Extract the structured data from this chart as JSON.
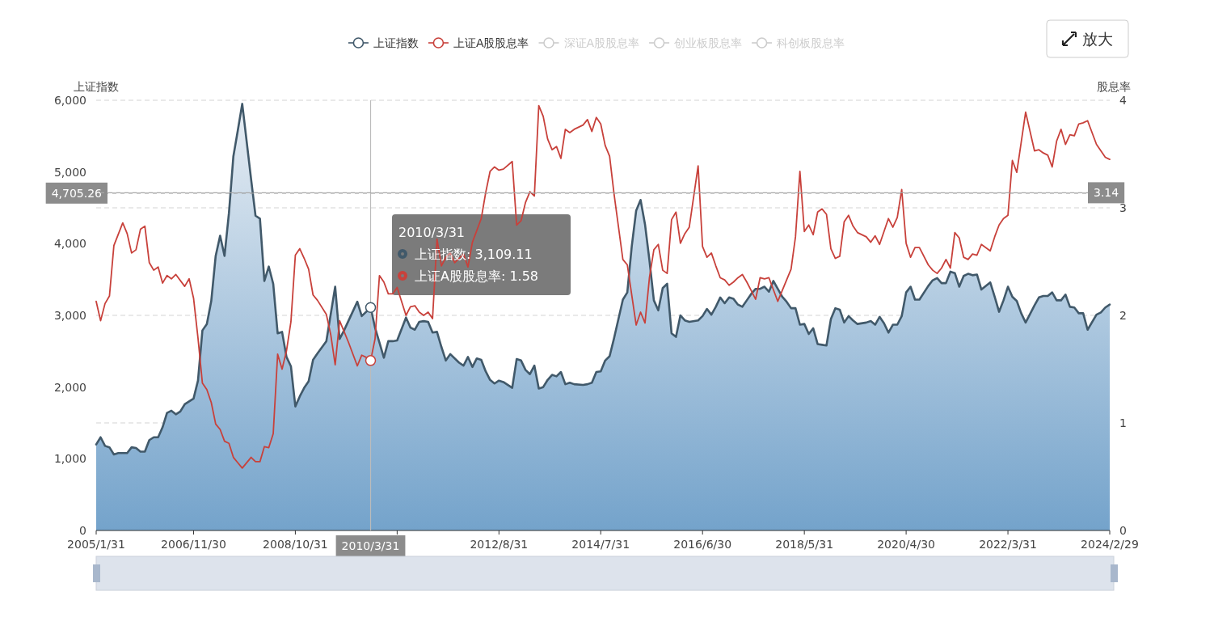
{
  "chart_data": {
    "type": "area",
    "ylabel": "上证指数",
    "y2label": "股息率",
    "legend": "top",
    "grid": "y2",
    "xlim": [
      "2005-01",
      "2024-02"
    ],
    "xticks": [
      {
        "value": "2005-01",
        "label": "2005/1/31"
      },
      {
        "value": "2006-11",
        "label": "2006/11/30"
      },
      {
        "value": "2008-10",
        "label": "2008/10/31"
      },
      {
        "value": "2010-09",
        "label": null
      },
      {
        "value": "2012-08",
        "label": "2012/8/31"
      },
      {
        "value": "2014-07",
        "label": "2014/7/31"
      },
      {
        "value": "2016-06",
        "label": "2016/6/30"
      },
      {
        "value": "2018-05",
        "label": "2018/5/31"
      },
      {
        "value": "2020-04",
        "label": "2020/4/30"
      },
      {
        "value": "2022-03",
        "label": "2022/3/31"
      },
      {
        "value": "2024-02",
        "label": "2024/2/29"
      }
    ],
    "ylim": [
      0,
      6000
    ],
    "yticks": [
      0,
      {
        "value": 1000,
        "label": "1,000"
      },
      {
        "value": 2000,
        "label": "2,000"
      },
      {
        "value": 3000,
        "label": "3,000"
      },
      {
        "value": 4000,
        "label": "4,000"
      },
      {
        "value": 5000,
        "label": "5,000"
      },
      {
        "value": 6000,
        "label": "6,000"
      }
    ],
    "y2lim": [
      0,
      4
    ],
    "y2ticks": [
      0,
      1,
      2,
      3,
      4
    ],
    "ref_lines": [
      {
        "axis": "x",
        "value": "2010-03",
        "label": "2010/3/31",
        "color": "#bbbbbb"
      },
      {
        "axis": "y",
        "value": 4705.26,
        "label": "4,705.26",
        "color": "#999999",
        "line_style": "dashed"
      },
      {
        "axis": "y2",
        "value": 3.14,
        "label": "3.14",
        "color": "#a8a8a8",
        "line_style": "dashed"
      }
    ],
    "annotations": [
      "2010/3/31",
      "上证指数: 3,109.11",
      "上证A股股息率: 1.58",
      "放大"
    ],
    "series": [
      {
        "name": "上证指数",
        "color": "#41596a",
        "x": [
          "2005-01",
          "2005-02",
          "2005-03",
          "2005-04",
          "2005-05",
          "2005-06",
          "2005-08",
          "2005-09",
          "2005-10",
          "2005-11",
          "2005-12",
          "2006-01",
          "2006-02",
          "2006-03",
          "2006-04",
          "2006-05",
          "2006-06",
          "2006-07",
          "2006-08",
          "2006-09",
          "2006-11",
          "2006-12",
          "2007-01",
          "2007-02",
          "2007-03",
          "2007-04",
          "2007-05",
          "2007-06",
          "2007-07",
          "2007-08",
          "2007-09",
          "2007-10",
          "2007-12",
          "2008-01",
          "2008-02",
          "2008-03",
          "2008-04",
          "2008-05",
          "2008-06",
          "2008-07",
          "2008-08",
          "2008-09",
          "2008-10",
          "2008-11",
          "2008-12",
          "2009-01",
          "2009-02",
          "2009-03",
          "2009-05",
          "2009-07",
          "2009-08",
          "2009-09",
          "2009-12",
          "2010-01",
          "2010-02",
          "2010-03",
          "2010-04",
          "2010-05",
          "2010-06",
          "2010-07",
          "2010-08",
          "2010-09",
          "2010-11",
          "2010-12",
          "2011-01",
          "2011-02",
          "2011-03",
          "2011-04",
          "2011-05",
          "2011-06",
          "2011-07",
          "2011-08",
          "2011-09",
          "2011-11",
          "2011-12",
          "2012-01",
          "2012-02",
          "2012-03",
          "2012-04",
          "2012-05",
          "2012-06",
          "2012-07",
          "2012-08",
          "2012-09",
          "2012-11",
          "2012-12",
          "2013-01",
          "2013-02",
          "2013-03",
          "2013-04",
          "2013-05",
          "2013-06",
          "2013-07",
          "2013-08",
          "2013-09",
          "2013-10",
          "2013-11",
          "2013-12",
          "2014-01",
          "2014-03",
          "2014-04",
          "2014-05",
          "2014-06",
          "2014-07",
          "2014-08",
          "2014-09",
          "2014-10",
          "2014-12",
          "2015-01",
          "2015-02",
          "2015-03",
          "2015-04",
          "2015-05",
          "2015-06",
          "2015-07",
          "2015-08",
          "2015-09",
          "2015-10",
          "2015-11",
          "2015-12",
          "2016-01",
          "2016-02",
          "2016-03",
          "2016-05",
          "2016-06",
          "2016-07",
          "2016-08",
          "2016-09",
          "2016-10",
          "2016-11",
          "2016-12",
          "2017-01",
          "2017-02",
          "2017-03",
          "2017-04",
          "2017-05",
          "2017-06",
          "2017-07",
          "2017-08",
          "2017-09",
          "2017-10",
          "2017-12",
          "2018-01",
          "2018-02",
          "2018-03",
          "2018-04",
          "2018-05",
          "2018-06",
          "2018-07",
          "2018-08",
          "2018-09",
          "2018-10",
          "2018-11",
          "2018-12",
          "2019-01",
          "2019-02",
          "2019-03",
          "2019-04",
          "2019-05",
          "2019-07",
          "2019-08",
          "2019-09",
          "2019-10",
          "2019-11",
          "2019-12",
          "2020-01",
          "2020-02",
          "2020-03",
          "2020-04",
          "2020-05",
          "2020-06",
          "2020-07",
          "2020-09",
          "2020-10",
          "2020-11",
          "2020-12",
          "2021-01",
          "2021-02",
          "2021-03",
          "2021-04",
          "2021-05",
          "2021-06",
          "2021-07",
          "2021-08",
          "2021-09",
          "2021-11",
          "2021-12",
          "2022-01",
          "2022-02",
          "2022-03",
          "2022-04",
          "2022-05",
          "2022-06",
          "2022-07",
          "2022-09",
          "2022-10",
          "2022-11",
          "2022-12",
          "2023-01",
          "2023-02",
          "2023-03",
          "2023-04",
          "2023-05",
          "2023-06",
          "2023-07",
          "2023-08",
          "2023-09",
          "2023-11",
          "2023-12",
          "2024-01",
          "2024-02"
        ],
        "values": [
          1200,
          1300,
          1180,
          1160,
          1060,
          1080,
          1080,
          1160,
          1150,
          1100,
          1100,
          1260,
          1300,
          1300,
          1440,
          1640,
          1670,
          1620,
          1660,
          1760,
          1840,
          2090,
          2790,
          2880,
          3200,
          3830,
          4110,
          3830,
          4430,
          5220,
          5580,
          5950,
          4900,
          4390,
          4350,
          3480,
          3680,
          3440,
          2750,
          2770,
          2420,
          2290,
          1730,
          1870,
          1990,
          2080,
          2380,
          2470,
          2640,
          3400,
          2670,
          2790,
          3190,
          2990,
          3050,
          3109.11,
          2830,
          2620,
          2410,
          2640,
          2640,
          2650,
          2970,
          2830,
          2800,
          2910,
          2920,
          2910,
          2760,
          2770,
          2560,
          2370,
          2460,
          2340,
          2300,
          2420,
          2280,
          2400,
          2380,
          2220,
          2100,
          2050,
          2090,
          2070,
          1990,
          2390,
          2370,
          2240,
          2180,
          2300,
          1980,
          2000,
          2100,
          2170,
          2150,
          2210,
          2040,
          2060,
          2040,
          2030,
          2040,
          2060,
          2210,
          2220,
          2370,
          2430,
          2680,
          3220,
          3320,
          3960,
          4460,
          4610,
          4270,
          3770,
          3210,
          3070,
          3380,
          3440,
          2750,
          2700,
          3000,
          2930,
          2910,
          2930,
          2990,
          3090,
          3010,
          3120,
          3250,
          3170,
          3250,
          3230,
          3150,
          3120,
          3210,
          3300,
          3370,
          3370,
          3400,
          3330,
          3480,
          3260,
          3190,
          3100,
          3100,
          2870,
          2880,
          2740,
          2820,
          2600,
          2590,
          2580,
          2950,
          3100,
          3080,
          2900,
          2990,
          2930,
          2880,
          2900,
          2920,
          2870,
          2980,
          2890,
          2760,
          2870,
          2870,
          2990,
          3320,
          3400,
          3220,
          3220,
          3410,
          3490,
          3520,
          3450,
          3450,
          3610,
          3590,
          3400,
          3550,
          3580,
          3560,
          3570,
          3360,
          3460,
          3260,
          3050,
          3210,
          3400,
          3260,
          3200,
          3030,
          2900,
          3140,
          3250,
          3270,
          3270,
          3320,
          3210,
          3210,
          3290,
          3120,
          3110,
          3030,
          3030,
          2800,
          3010,
          3040,
          3110,
          3150
        ]
      },
      {
        "name": "上证A股股息率",
        "type": "line",
        "axis": "y2",
        "color": "#c8413b",
        "x": [
          "2005-01",
          "2005-02",
          "2005-03",
          "2005-04",
          "2005-05",
          "2005-07",
          "2005-08",
          "2005-09",
          "2005-10",
          "2005-11",
          "2005-12",
          "2006-01",
          "2006-02",
          "2006-03",
          "2006-04",
          "2006-05",
          "2006-06",
          "2006-07",
          "2006-09",
          "2006-10",
          "2006-11",
          "2006-12",
          "2007-01",
          "2007-02",
          "2007-03",
          "2007-04",
          "2007-05",
          "2007-06",
          "2007-07",
          "2007-08",
          "2007-09",
          "2007-10",
          "2007-12",
          "2008-01",
          "2008-02",
          "2008-03",
          "2008-04",
          "2008-05",
          "2008-06",
          "2008-07",
          "2008-08",
          "2008-09",
          "2008-10",
          "2008-11",
          "2008-12",
          "2009-01",
          "2009-02",
          "2009-03",
          "2009-05",
          "2009-06",
          "2009-07",
          "2009-08",
          "2009-09",
          "2009-10",
          "2009-12",
          "2010-01",
          "2010-02",
          "2010-03",
          "2010-04",
          "2010-05",
          "2010-06",
          "2010-07",
          "2010-08",
          "2010-09",
          "2010-11",
          "2010-12",
          "2011-01",
          "2011-02",
          "2011-03",
          "2011-04",
          "2011-05",
          "2011-06",
          "2011-07",
          "2011-08",
          "2011-09",
          "2011-10",
          "2011-12",
          "2012-01",
          "2012-02",
          "2012-04",
          "2012-05",
          "2012-06",
          "2012-07",
          "2012-08",
          "2012-09",
          "2012-11",
          "2012-12",
          "2013-01",
          "2013-02",
          "2013-03",
          "2013-04",
          "2013-05",
          "2013-06",
          "2013-07",
          "2013-08",
          "2013-09",
          "2013-10",
          "2013-11",
          "2013-12",
          "2014-01",
          "2014-03",
          "2014-04",
          "2014-05",
          "2014-06",
          "2014-07",
          "2014-08",
          "2014-09",
          "2014-10",
          "2014-12",
          "2015-01",
          "2015-02",
          "2015-03",
          "2015-04",
          "2015-05",
          "2015-06",
          "2015-07",
          "2015-08",
          "2015-09",
          "2015-10",
          "2015-11",
          "2015-12",
          "2016-01",
          "2016-02",
          "2016-03",
          "2016-05",
          "2016-06",
          "2016-07",
          "2016-08",
          "2016-09",
          "2016-10",
          "2016-11",
          "2016-12",
          "2017-01",
          "2017-02",
          "2017-03",
          "2017-04",
          "2017-05",
          "2017-06",
          "2017-07",
          "2017-08",
          "2017-09",
          "2017-11",
          "2018-02",
          "2018-03",
          "2018-04",
          "2018-05",
          "2018-06",
          "2018-07",
          "2018-08",
          "2018-09",
          "2018-10",
          "2018-11",
          "2018-12",
          "2019-01",
          "2019-02",
          "2019-03",
          "2019-04",
          "2019-05",
          "2019-07",
          "2019-08",
          "2019-09",
          "2019-10",
          "2019-11",
          "2019-12",
          "2020-01",
          "2020-02",
          "2020-03",
          "2020-04",
          "2020-05",
          "2020-06",
          "2020-07",
          "2020-09",
          "2020-10",
          "2020-11",
          "2020-12",
          "2021-01",
          "2021-02",
          "2021-03",
          "2021-04",
          "2021-05",
          "2021-06",
          "2021-07",
          "2021-08",
          "2021-09",
          "2021-11",
          "2021-12",
          "2022-01",
          "2022-02",
          "2022-03",
          "2022-04",
          "2022-05",
          "2022-06",
          "2022-07",
          "2022-09",
          "2022-10",
          "2022-11",
          "2022-12",
          "2023-01",
          "2023-02",
          "2023-03",
          "2023-04",
          "2023-05",
          "2023-06",
          "2023-07",
          "2023-08",
          "2023-09",
          "2023-11",
          "2023-12",
          "2024-01",
          "2024-02"
        ],
        "values": [
          2.13,
          1.95,
          2.11,
          2.18,
          2.65,
          2.86,
          2.76,
          2.58,
          2.61,
          2.8,
          2.83,
          2.49,
          2.42,
          2.45,
          2.3,
          2.37,
          2.34,
          2.38,
          2.27,
          2.34,
          2.16,
          1.79,
          1.37,
          1.31,
          1.19,
          0.99,
          0.94,
          0.83,
          0.81,
          0.68,
          0.63,
          0.58,
          0.68,
          0.64,
          0.64,
          0.78,
          0.77,
          0.9,
          1.64,
          1.5,
          1.67,
          1.94,
          2.56,
          2.62,
          2.53,
          2.43,
          2.19,
          2.14,
          2.01,
          1.82,
          1.54,
          1.95,
          1.85,
          1.75,
          1.53,
          1.63,
          1.61,
          1.58,
          1.78,
          2.37,
          2.31,
          2.2,
          2.2,
          2.26,
          2.0,
          2.08,
          2.09,
          2.03,
          2.0,
          2.03,
          1.97,
          2.71,
          2.46,
          2.54,
          2.58,
          2.49,
          2.57,
          2.45,
          2.68,
          2.9,
          3.14,
          3.34,
          3.38,
          3.35,
          3.36,
          3.43,
          2.84,
          2.88,
          3.05,
          3.15,
          3.11,
          3.95,
          3.85,
          3.64,
          3.54,
          3.57,
          3.46,
          3.73,
          3.7,
          3.73,
          3.77,
          3.82,
          3.71,
          3.84,
          3.78,
          3.58,
          3.48,
          3.13,
          2.52,
          2.47,
          2.19,
          1.91,
          2.03,
          1.93,
          2.35,
          2.61,
          2.66,
          2.42,
          2.39,
          2.89,
          2.96,
          2.67,
          2.76,
          2.82,
          3.39,
          2.64,
          2.54,
          2.58,
          2.46,
          2.35,
          2.33,
          2.28,
          2.31,
          2.35,
          2.38,
          2.31,
          2.23,
          2.15,
          2.35,
          2.34,
          2.35,
          2.13,
          2.43,
          2.73,
          3.34,
          2.78,
          2.84,
          2.75,
          2.96,
          2.99,
          2.94,
          2.62,
          2.53,
          2.55,
          2.87,
          2.93,
          2.83,
          2.77,
          2.73,
          2.68,
          2.74,
          2.66,
          2.78,
          2.9,
          2.82,
          2.91,
          3.17,
          2.67,
          2.54,
          2.63,
          2.63,
          2.47,
          2.42,
          2.39,
          2.44,
          2.52,
          2.44,
          2.77,
          2.72,
          2.54,
          2.52,
          2.57,
          2.56,
          2.66,
          2.6,
          2.73,
          2.84,
          2.9,
          2.93,
          3.44,
          3.33,
          3.61,
          3.89,
          3.53,
          3.54,
          3.51,
          3.49,
          3.38,
          3.62,
          3.73,
          3.59,
          3.68,
          3.67,
          3.78,
          3.79,
          3.81,
          3.59,
          3.53,
          3.47,
          3.45
        ]
      },
      {
        "name": "深证A股股息率",
        "color": "#cccccc"
      },
      {
        "name": "创业板股息率",
        "color": "#cccccc"
      },
      {
        "name": "科创板股息率",
        "color": "#cccccc"
      }
    ]
  }
}
